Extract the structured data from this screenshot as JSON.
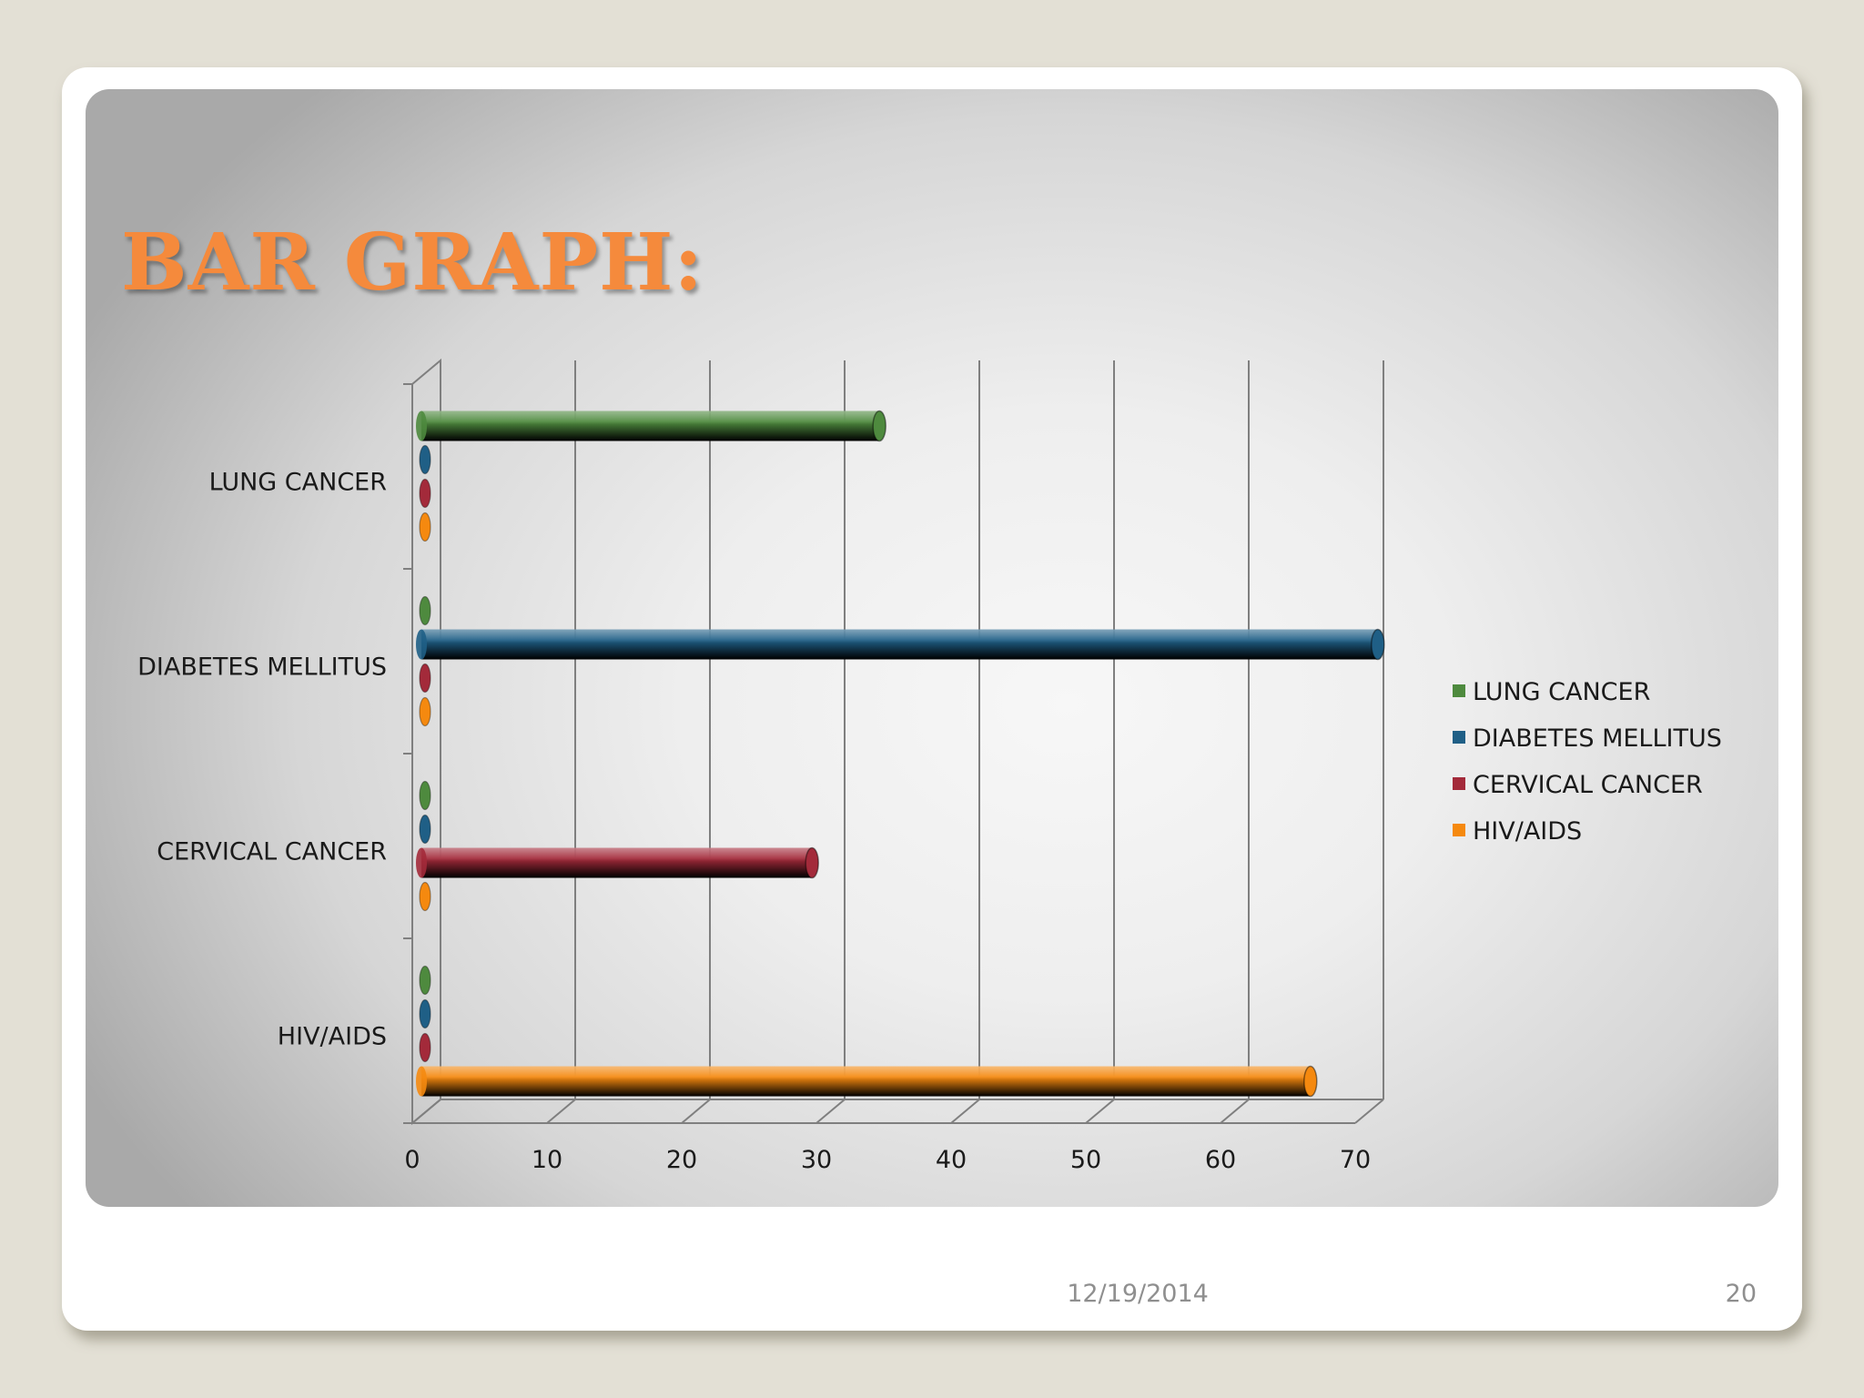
{
  "slide": {
    "title": "BAR GRAPH:",
    "date": "12/19/2014",
    "page_number": "20"
  },
  "chart_data": {
    "type": "bar",
    "orientation": "horizontal",
    "three_d": true,
    "title": "",
    "xlabel": "",
    "ylabel": "",
    "categories": [
      "LUNG CANCER",
      "DIABETES MELLITUS",
      "CERVICAL CANCER",
      "HIV/AIDS"
    ],
    "xlim": [
      0,
      70
    ],
    "xticks": [
      0,
      10,
      20,
      30,
      40,
      50,
      60,
      70
    ],
    "grid": "vertical",
    "legend_position": "right",
    "series": [
      {
        "name": "LUNG CANCER",
        "color": "#4e8a3e",
        "values": [
          34,
          0,
          0,
          0
        ]
      },
      {
        "name": "DIABETES MELLITUS",
        "color": "#1f5f86",
        "values": [
          0,
          71,
          0,
          0
        ]
      },
      {
        "name": "CERVICAL CANCER",
        "color": "#a32a3a",
        "values": [
          0,
          0,
          29,
          0
        ]
      },
      {
        "name": "HIV/AIDS",
        "color": "#f5890f",
        "values": [
          0,
          0,
          0,
          66
        ]
      }
    ]
  }
}
